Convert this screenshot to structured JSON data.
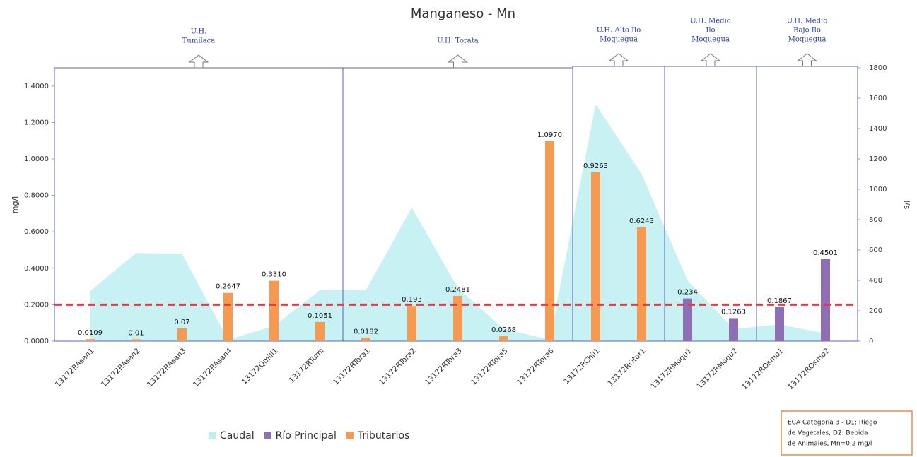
{
  "chart_data": {
    "type": "bar",
    "title": "Manganeso - Mn",
    "ylabel": "mg/l",
    "y2label": "l/s",
    "categories": [
      "13172RAsan1",
      "13172RAsan2",
      "13172RAsan3",
      "13172RAsan4",
      "13172Qmill1",
      "13172RTumi",
      "13172RTora1",
      "13172RTora2",
      "13172RTora3",
      "13172RTora5",
      "13172RTora6",
      "13172RChil1",
      "13172ROtor1",
      "13172RMoqu1",
      "13172RMoqu2",
      "13172ROsmo1",
      "13172ROsmo2"
    ],
    "series": [
      {
        "name": "Caudal",
        "type": "area",
        "axis": "y2",
        "color": "#bdeff0",
        "values": [
          330,
          580,
          575,
          10,
          100,
          335,
          335,
          880,
          350,
          80,
          10,
          1560,
          1100,
          400,
          80,
          110,
          50
        ]
      },
      {
        "name": "Río Principal",
        "type": "bar",
        "color": "#8e6fb5",
        "values": [
          null,
          null,
          null,
          null,
          null,
          null,
          null,
          null,
          null,
          null,
          null,
          null,
          null,
          0.234,
          0.1263,
          0.1867,
          0.4501
        ],
        "value_labels": [
          null,
          null,
          null,
          null,
          null,
          null,
          null,
          null,
          null,
          null,
          null,
          null,
          null,
          "0.234",
          "0.1263",
          "0.1867",
          "0.4501"
        ]
      },
      {
        "name": "Tributarios",
        "type": "bar",
        "color": "#f59a50",
        "values": [
          0.0109,
          0.01,
          0.07,
          0.2647,
          0.331,
          0.1051,
          0.0182,
          0.193,
          0.2481,
          0.0268,
          1.097,
          0.9263,
          0.6243,
          null,
          null,
          null,
          null
        ],
        "value_labels": [
          "0.0109",
          "0.01",
          "0.07",
          "0.2647",
          "0.3310",
          "0.1051",
          "0.0182",
          "0.193",
          "0.2481",
          "0.0268",
          "1.0970",
          "0.9263",
          "0.6243",
          null,
          null,
          null,
          null
        ]
      }
    ],
    "ylim": [
      0,
      1.5
    ],
    "yticks": [
      {
        "value": 0,
        "label": "0.0000"
      },
      {
        "value": 0.2,
        "label": "0.2000"
      },
      {
        "value": 0.4,
        "label": "0.4000"
      },
      {
        "value": 0.6,
        "label": "0.6000"
      },
      {
        "value": 0.8,
        "label": "0.8000"
      },
      {
        "value": 1.0,
        "label": "1.0000"
      },
      {
        "value": 1.2,
        "label": "1.2000"
      },
      {
        "value": 1.4,
        "label": "1.4000"
      }
    ],
    "y2lim": [
      0,
      1800
    ],
    "y2ticks": [
      0,
      200,
      400,
      600,
      800,
      1000,
      1200,
      1400,
      1600,
      1800
    ],
    "threshold_line": {
      "value": 0.2,
      "color": "#e8383d"
    },
    "regions": [
      {
        "label": [
          "U.H.",
          "Tumilaca"
        ],
        "first": "13172RAsan1",
        "last": "13172RTumi"
      },
      {
        "label": [
          "U.H. Torata"
        ],
        "first": "13172RTora1",
        "last": "13172RTora6"
      },
      {
        "label": [
          "U.H. Alto Ilo",
          "Moquegua"
        ],
        "first": "13172RChil1",
        "last": "13172ROtor1"
      },
      {
        "label": [
          "U.H. Medio",
          "Ilo",
          "Moquegua"
        ],
        "first": "13172RMoqu1",
        "last": "13172RMoqu2"
      },
      {
        "label": [
          "U.H. Medio",
          "Bajo Ilo",
          "Moquegua"
        ],
        "first": "13172ROsmo1",
        "last": "13172ROsmo2"
      }
    ],
    "note": [
      "ECA Categoría 3 - D1: Riego",
      "de Vegetales,  D2: Bebida",
      "de Animales, Mn=0.2 mg/l"
    ],
    "legend": "bottom"
  }
}
